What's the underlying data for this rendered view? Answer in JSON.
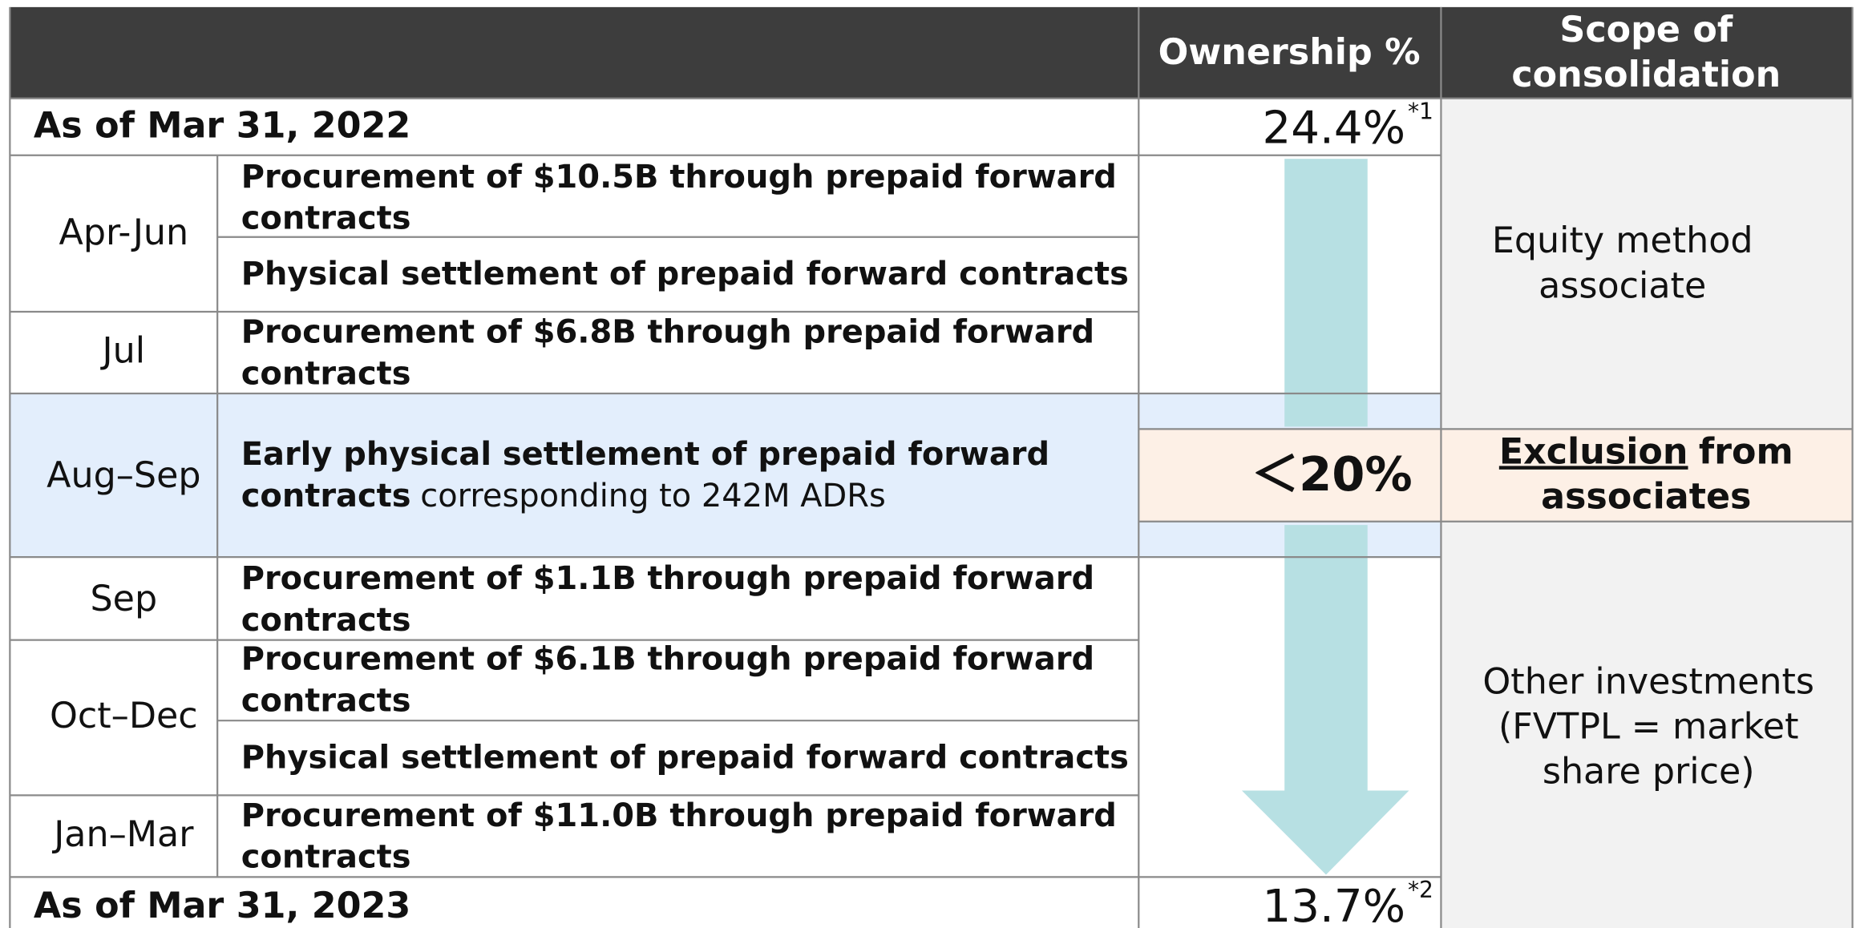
{
  "header": {
    "columns": [
      {
        "lines": [
          "Ownership %"
        ]
      },
      {
        "lines": [
          "Scope of",
          "consolidation"
        ]
      }
    ]
  },
  "start": {
    "label": "As of Mar 31, 2022",
    "ownership": "24.4%",
    "note": "*1"
  },
  "periods": [
    {
      "period": "Apr-Jun",
      "events": [
        {
          "lines": [
            "Procurement of $10.5B through prepaid forward",
            "contracts"
          ]
        },
        {
          "lines": [
            "Physical settlement of prepaid forward contracts"
          ]
        }
      ]
    },
    {
      "period": "Jul",
      "events": [
        {
          "lines": [
            "Procurement of $6.8B through prepaid forward",
            "contracts"
          ]
        }
      ]
    },
    {
      "period": "Aug–Sep",
      "events": [
        {
          "lines": [
            "Early physical settlement of prepaid forward",
            "contracts"
          ],
          "suffix": "corresponding to 242M ADRs"
        }
      ]
    },
    {
      "period": "Sep",
      "events": [
        {
          "lines": [
            "Procurement of $1.1B through prepaid forward",
            "contracts"
          ]
        }
      ]
    },
    {
      "period": "Oct–Dec",
      "events": [
        {
          "lines": [
            "Procurement of $6.1B through prepaid forward",
            "contracts"
          ]
        },
        {
          "lines": [
            "Physical settlement of prepaid forward contracts"
          ]
        }
      ]
    },
    {
      "period": "Jan–Mar",
      "events": [
        {
          "lines": [
            "Procurement of $11.0B through prepaid forward",
            "contracts"
          ]
        }
      ]
    }
  ],
  "threshold": "＜20%",
  "scope": {
    "equity": [
      "Equity method",
      "associate"
    ],
    "exclusion": {
      "underlined": "Exclusion",
      "rest": "from",
      "line2": "associates"
    },
    "other": [
      "Other investments",
      "(FVTPL = market",
      "share price)"
    ]
  },
  "end": {
    "label": "As of Mar 31, 2023",
    "ownership": "13.7%",
    "note": "*2"
  }
}
